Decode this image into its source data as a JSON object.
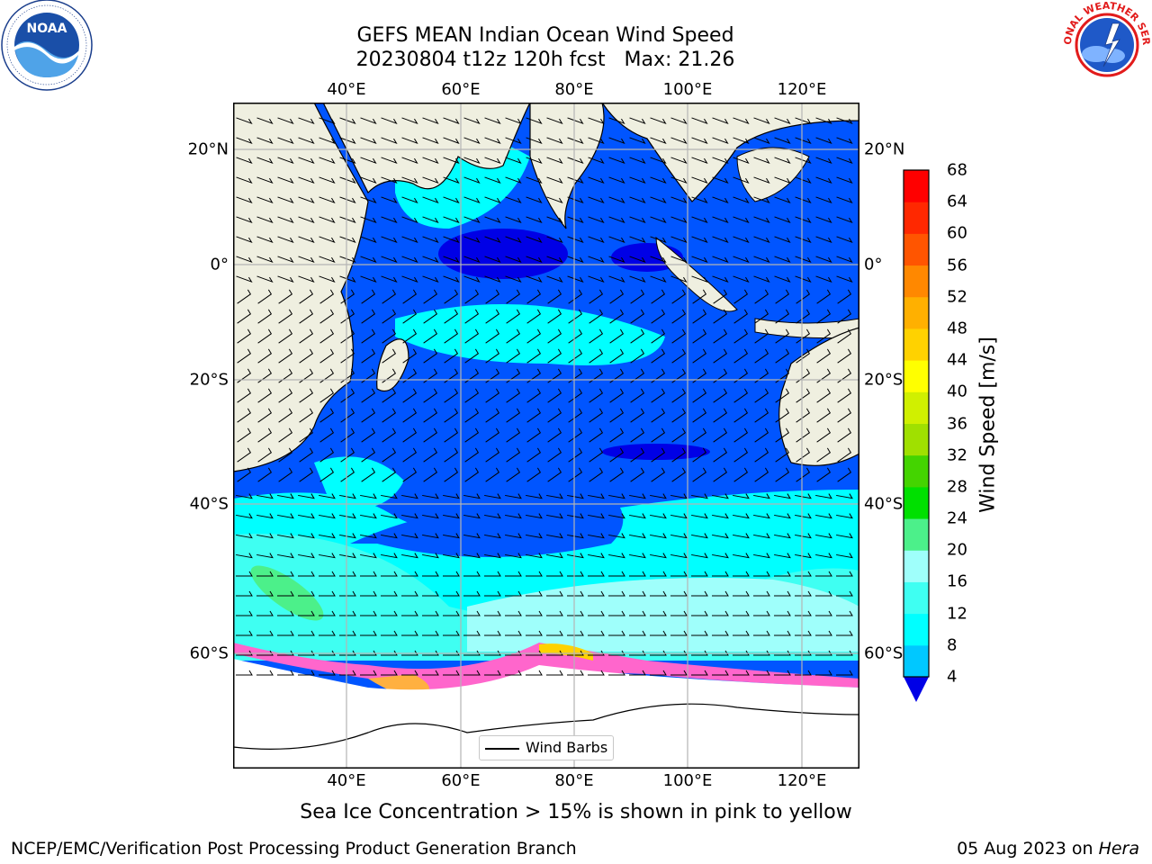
{
  "title": {
    "line1": "GEFS MEAN Indian Ocean Wind Speed",
    "line2": "20230804 t12z 120h fcst   Max: 21.26"
  },
  "map": {
    "lon_labels": [
      "40°E",
      "60°E",
      "80°E",
      "100°E",
      "120°E"
    ],
    "lat_labels": [
      "20°N",
      "0°",
      "20°S",
      "40°S",
      "60°S"
    ],
    "lon_values": [
      40,
      60,
      80,
      100,
      120
    ],
    "lat_values": [
      20,
      0,
      -20,
      -40,
      -60
    ],
    "gridlines": true,
    "land_color": "#efefe0",
    "sea_ice_note_color": "pink to yellow"
  },
  "colorbar": {
    "label": "Wind Speed [m/s]",
    "ticks": [
      "4",
      "8",
      "12",
      "16",
      "20",
      "24",
      "28",
      "32",
      "36",
      "40",
      "44",
      "48",
      "52",
      "56",
      "60",
      "64",
      "68"
    ],
    "colors": [
      "#0055ff",
      "#00c8ff",
      "#00ffff",
      "#3ffff2",
      "#9ffffb",
      "#4cf08a",
      "#00e000",
      "#44d400",
      "#a0e000",
      "#d0f000",
      "#ffff00",
      "#ffd200",
      "#ffb000",
      "#ff8800",
      "#ff5500",
      "#ff2800",
      "#ff0000"
    ],
    "under_color": "#0000e6"
  },
  "legend": {
    "label": "Wind Barbs"
  },
  "caption": "Sea Ice Concentration > 15% is shown in pink to yellow",
  "footer": {
    "left": "NCEP/EMC/Verification Post Processing Product Generation Branch",
    "right_date": "05 Aug 2023 on ",
    "right_machine": "Hera"
  },
  "logos": {
    "left": "NOAA",
    "right": "NATIONAL WEATHER SERVICE"
  }
}
